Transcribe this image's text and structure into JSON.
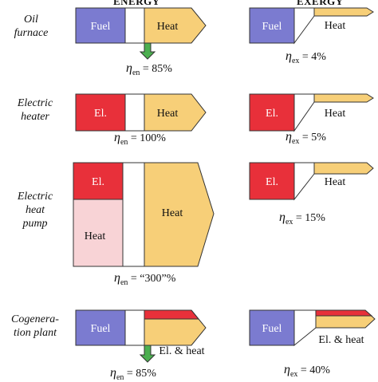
{
  "headers": {
    "energy": "ENERGY",
    "exergy": "EXERGY"
  },
  "colors": {
    "fuel": "#7b7bd0",
    "electricity": "#e8303a",
    "heat": "#f7cf78",
    "ambient_heat": "#f8d3d6",
    "loss_arrow": "#4caf50"
  },
  "rows": [
    {
      "label": [
        "Oil",
        "furnace"
      ],
      "energy": {
        "input": "Fuel",
        "output": "Heat",
        "eta_sub": "en",
        "eta_value": "= 85%"
      },
      "exergy": {
        "input": "Fuel",
        "output": "Heat",
        "eta_sub": "ex",
        "eta_value": "= 4%"
      }
    },
    {
      "label": [
        "Electric",
        "heater"
      ],
      "energy": {
        "input": "El.",
        "output": "Heat",
        "eta_sub": "en",
        "eta_value": "= 100%"
      },
      "exergy": {
        "input": "El.",
        "output": "Heat",
        "eta_sub": "ex",
        "eta_value": "= 5%"
      }
    },
    {
      "label": [
        "Electric",
        "heat",
        "pump"
      ],
      "energy": {
        "input": "El.",
        "input2": "Heat",
        "output": "Heat",
        "eta_sub": "en",
        "eta_value": "= “300”%"
      },
      "exergy": {
        "input": "El.",
        "output": "Heat",
        "eta_sub": "ex",
        "eta_value": "= 15%"
      }
    },
    {
      "label": [
        "Cogenera-",
        "tion plant"
      ],
      "energy": {
        "input": "Fuel",
        "output": "El. & heat",
        "eta_sub": "en",
        "eta_value": "= 85%"
      },
      "exergy": {
        "input": "Fuel",
        "output": "El. & heat",
        "eta_sub": "ex",
        "eta_value": "= 40%"
      }
    }
  ]
}
